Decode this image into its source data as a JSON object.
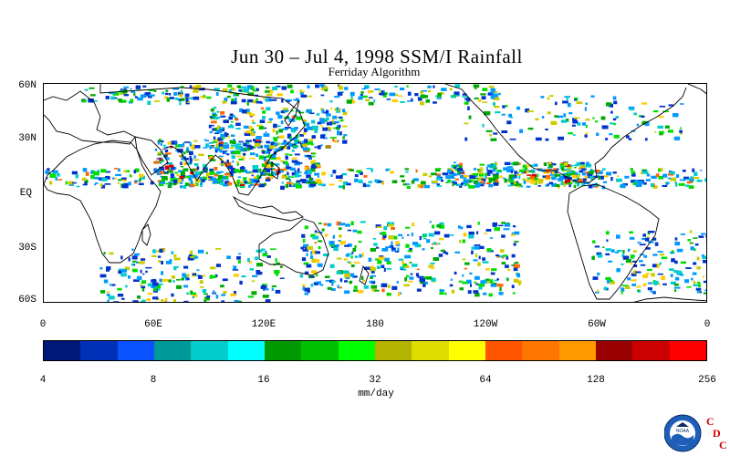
{
  "title": "Jun 30 – Jul 4, 1998 SSM/I Rainfall",
  "subtitle": "Ferriday Algorithm",
  "map": {
    "lat_labels": [
      "60N",
      "30N",
      "EQ",
      "30S",
      "60S"
    ],
    "lon_labels": [
      "0",
      "60E",
      "120E",
      "180",
      "120W",
      "60W",
      "0"
    ],
    "rain_palette": [
      "#0033cc",
      "#0099ff",
      "#00cccc",
      "#00aa00",
      "#00dd00",
      "#cccc00",
      "#ffcc00",
      "#ff6600",
      "#cc0000"
    ]
  },
  "colorbar": {
    "colors": [
      "#00187a",
      "#0030b8",
      "#0a52ff",
      "#009999",
      "#00cccc",
      "#00ffff",
      "#009900",
      "#00c000",
      "#00ff00",
      "#b3b300",
      "#dddd00",
      "#ffff00",
      "#ff5500",
      "#ff7700",
      "#ff9900",
      "#990000",
      "#cc0000",
      "#ff0000"
    ],
    "tick_labels": [
      "4",
      "8",
      "16",
      "32",
      "64",
      "128",
      "256"
    ],
    "units": "mm/day"
  },
  "logo": {
    "noaa_text": "NOAA",
    "cdc_letters": [
      "C",
      "D",
      "C"
    ]
  }
}
